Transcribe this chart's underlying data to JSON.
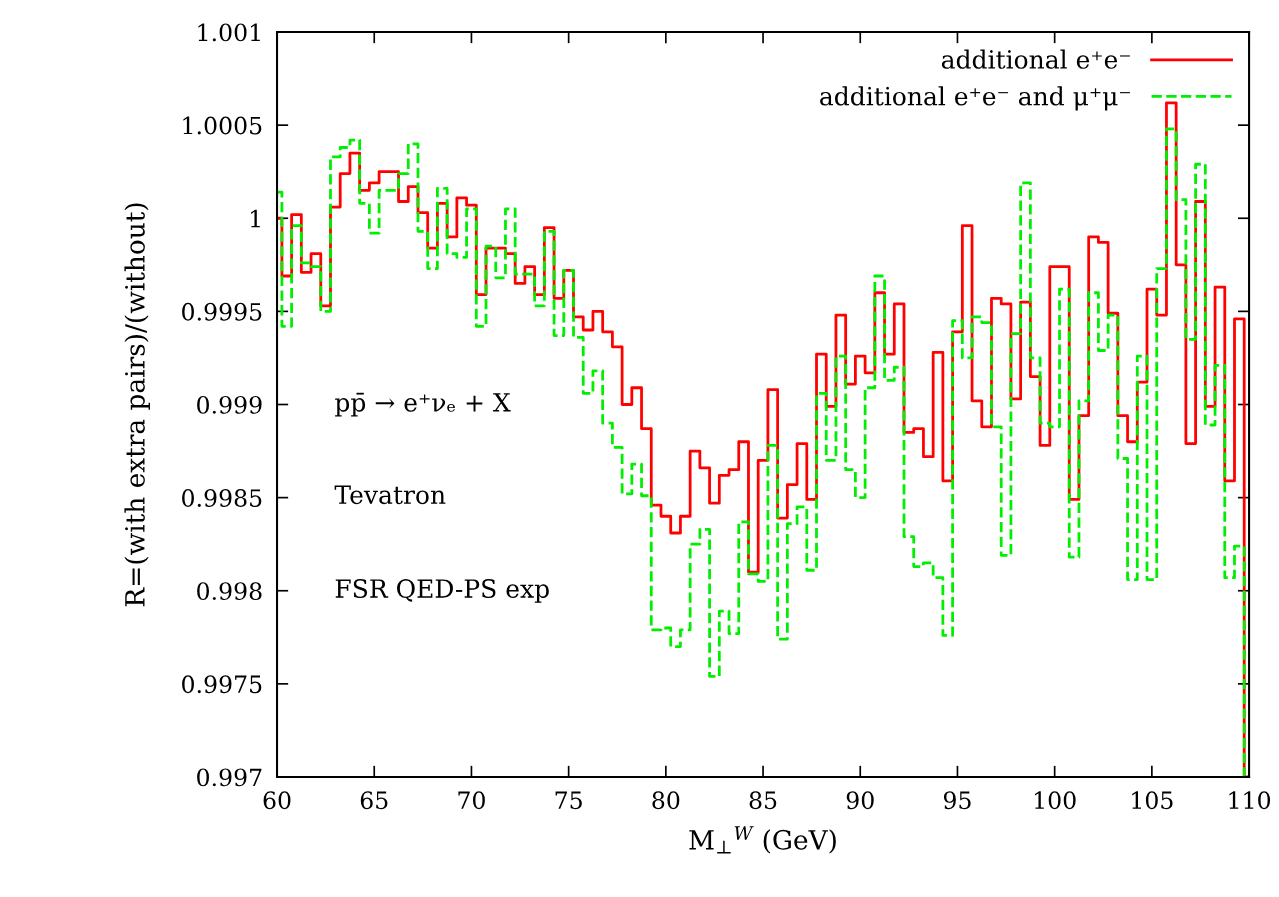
{
  "chart_data": {
    "type": "step",
    "xlabel": "M$_{⊥}$$^{W}$ (GeV)",
    "ylabel": "R=(with extra pairs)/(without)",
    "annotations": [
      "pp̄ → e⁺νₑ + X",
      "Tevatron",
      "FSR QED-PS exp"
    ],
    "x": [
      60,
      60.5,
      61,
      61.5,
      62,
      62.5,
      63,
      63.5,
      64,
      64.5,
      65,
      65.5,
      66,
      66.5,
      67,
      67.5,
      68,
      68.5,
      69,
      69.5,
      70,
      70.5,
      71,
      71.5,
      72,
      72.5,
      73,
      73.5,
      74,
      74.5,
      75,
      75.5,
      76,
      76.5,
      77,
      77.5,
      78,
      78.5,
      79,
      79.5,
      80,
      80.5,
      81,
      81.5,
      82,
      82.5,
      83,
      83.5,
      84,
      84.5,
      85,
      85.5,
      86,
      86.5,
      87,
      87.5,
      88,
      88.5,
      89,
      89.5,
      90,
      90.5,
      91,
      91.5,
      92,
      92.5,
      93,
      93.5,
      94,
      94.5,
      95,
      95.5,
      96,
      96.5,
      97,
      97.5,
      98,
      98.5,
      99,
      99.5,
      100,
      100.5,
      101,
      101.5,
      102,
      102.5,
      103,
      103.5,
      104,
      104.5,
      105,
      105.5,
      106,
      106.5,
      107,
      107.5,
      108,
      108.5,
      109,
      109.5,
      110
    ],
    "series": [
      {
        "name": "additional e⁺e⁻",
        "color": "#ff0000",
        "line_style": "solid",
        "values": [
          1.0,
          0.99969,
          1.00002,
          0.99971,
          0.99981,
          0.99953,
          1.00006,
          1.00024,
          1.00035,
          1.00015,
          1.00019,
          1.00025,
          1.00025,
          1.00009,
          1.00017,
          1.00003,
          0.99984,
          1.00008,
          0.9999,
          1.00011,
          1.00007,
          0.99959,
          0.99984,
          0.99984,
          0.99981,
          0.99965,
          0.99974,
          0.99959,
          0.99995,
          0.99957,
          0.99972,
          0.99947,
          0.9994,
          0.9995,
          0.99939,
          0.99931,
          0.999,
          0.99909,
          0.99887,
          0.99846,
          0.9984,
          0.99831,
          0.9984,
          0.99875,
          0.99866,
          0.99847,
          0.99862,
          0.99865,
          0.9988,
          0.9981,
          0.9987,
          0.99908,
          0.99839,
          0.99857,
          0.99879,
          0.99849,
          0.99927,
          0.99899,
          0.99948,
          0.99911,
          0.99926,
          0.99917,
          0.9996,
          0.99927,
          0.99954,
          0.99885,
          0.99887,
          0.99872,
          0.99928,
          0.99859,
          0.99939,
          0.99996,
          0.99902,
          0.99888,
          0.99957,
          0.99954,
          0.99903,
          0.99955,
          0.99915,
          0.99878,
          0.99974,
          0.99974,
          0.99849,
          0.99894,
          0.9999,
          0.99987,
          0.99949,
          0.99894,
          0.9988,
          0.99912,
          0.99962,
          0.99948,
          1.00062,
          0.99975,
          0.99879,
          1.00009,
          0.99899,
          0.99963,
          0.99859,
          0.99946,
          0.997
        ]
      },
      {
        "name": "additional e⁺e⁻ and μ⁺μ⁻",
        "color": "#00ee00",
        "line_style": "dashed",
        "values": [
          1.00014,
          0.99942,
          0.99996,
          0.99976,
          0.99974,
          0.9995,
          1.00033,
          1.00038,
          1.00042,
          1.00008,
          0.99992,
          1.00015,
          1.00015,
          1.00024,
          1.0004,
          0.99993,
          0.99973,
          1.00016,
          0.99981,
          0.99979,
          1.00005,
          0.99942,
          0.99985,
          0.99968,
          1.00005,
          0.9997,
          0.9997,
          0.99953,
          0.99993,
          0.99937,
          0.99972,
          0.99936,
          0.99906,
          0.99918,
          0.9989,
          0.99877,
          0.99852,
          0.99868,
          0.99851,
          0.99779,
          0.9978,
          0.9977,
          0.99779,
          0.99825,
          0.99833,
          0.99754,
          0.99789,
          0.99777,
          0.99837,
          0.99809,
          0.99805,
          0.99878,
          0.99774,
          0.99836,
          0.99845,
          0.99811,
          0.99906,
          0.9987,
          0.99926,
          0.99865,
          0.9985,
          0.99909,
          0.99969,
          0.99913,
          0.9992,
          0.99829,
          0.99813,
          0.99815,
          0.99807,
          0.99776,
          0.99945,
          0.99925,
          0.99947,
          0.99944,
          0.99888,
          0.99819,
          0.99938,
          1.00019,
          0.99925,
          0.9989,
          0.99888,
          0.99962,
          0.99818,
          0.99902,
          0.9996,
          0.99929,
          0.99948,
          0.99871,
          0.99806,
          0.99926,
          0.99806,
          0.99973,
          1.00048,
          1.0001,
          0.99935,
          1.00029,
          0.99889,
          0.99921,
          0.99807,
          0.99824,
          0.997
        ]
      }
    ],
    "xlim": [
      60,
      110
    ],
    "xticks": [
      60,
      65,
      70,
      75,
      80,
      85,
      90,
      95,
      100,
      105,
      110
    ],
    "ylim": [
      0.997,
      1.001
    ],
    "yticks": [
      0.997,
      0.9975,
      0.998,
      0.9985,
      0.999,
      0.9995,
      1,
      1.0005,
      1.001
    ],
    "grid": false,
    "legend": "top right",
    "marker": "none"
  }
}
